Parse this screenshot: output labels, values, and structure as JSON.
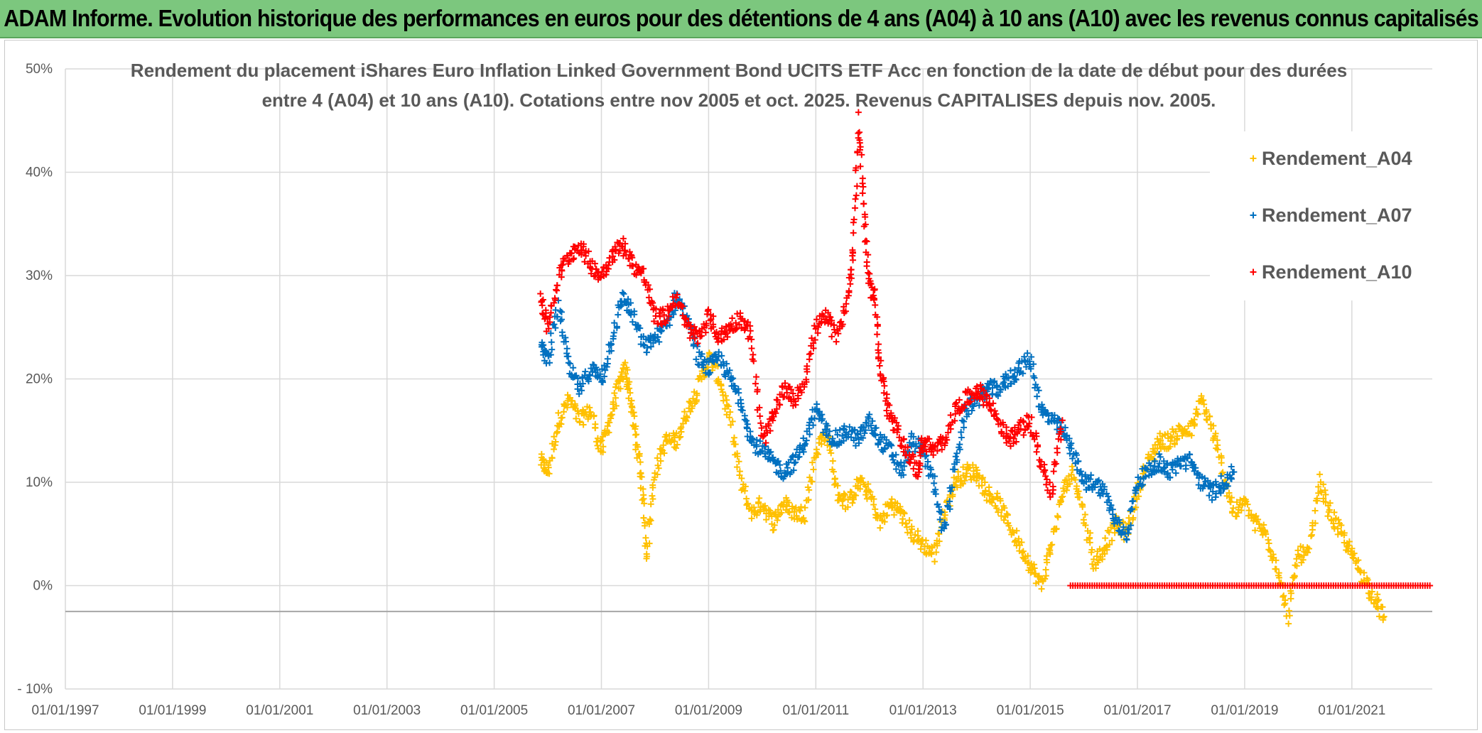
{
  "header": {
    "title": "ADAM Informe. Evolution historique des performances en euros pour des détentions de 4 ans (A04) à 10 ans (A10) avec les revenus connus capitalisés"
  },
  "chart_data": {
    "type": "scatter",
    "title_lines": [
      "Rendement du placement iShares Euro Inflation Linked Government Bond UCITS ETF Acc en fonction de la date de début pour des durées",
      "entre 4 (A04) et 10 ans (A10). Cotations entre nov 2005 et oct. 2025. Revenus CAPITALISES depuis nov. 2005."
    ],
    "xlabel": "",
    "ylabel": "",
    "xlim": [
      1997.0,
      2022.5
    ],
    "ylim": [
      -10,
      50
    ],
    "x_ticks": [
      "01/01/1997",
      "01/01/1999",
      "01/01/2001",
      "01/01/2003",
      "01/01/2005",
      "01/01/2007",
      "01/01/2009",
      "01/01/2011",
      "01/01/2013",
      "01/01/2015",
      "01/01/2017",
      "01/01/2019",
      "01/01/2021"
    ],
    "x_tick_years": [
      1997,
      1999,
      2001,
      2003,
      2005,
      2007,
      2009,
      2011,
      2013,
      2015,
      2017,
      2019,
      2021
    ],
    "y_ticks": [
      "- 10%",
      "0%",
      "10%",
      "20%",
      "30%",
      "40%",
      "50%"
    ],
    "y_tick_values": [
      -10,
      0,
      10,
      20,
      30,
      40,
      50
    ],
    "reference_line_y": -2.5,
    "legend_position": "top-right",
    "marker": "+",
    "series": [
      {
        "name": "Rendement_A04",
        "color": "#ffc000",
        "x": [
          2005.87,
          2006.0,
          2006.2,
          2006.4,
          2006.6,
          2006.8,
          2007.0,
          2007.15,
          2007.3,
          2007.45,
          2007.55,
          2007.65,
          2007.75,
          2007.85,
          2008.0,
          2008.2,
          2008.4,
          2008.6,
          2008.8,
          2009.0,
          2009.2,
          2009.4,
          2009.6,
          2009.8,
          2010.0,
          2010.2,
          2010.4,
          2010.6,
          2010.8,
          2011.0,
          2011.2,
          2011.4,
          2011.6,
          2011.8,
          2012.0,
          2012.2,
          2012.4,
          2012.6,
          2012.8,
          2013.0,
          2013.2,
          2013.4,
          2013.6,
          2013.8,
          2014.0,
          2014.2,
          2014.4,
          2014.6,
          2014.8,
          2015.0,
          2015.2,
          2015.4,
          2015.6,
          2015.8,
          2016.0,
          2016.2,
          2016.4,
          2016.6,
          2016.8,
          2017.0,
          2017.2,
          2017.4,
          2017.6,
          2017.8,
          2018.0,
          2018.2,
          2018.4,
          2018.6,
          2018.8,
          2019.0,
          2019.2,
          2019.4,
          2019.6,
          2019.8,
          2020.0,
          2020.2,
          2020.4,
          2020.6,
          2020.8,
          2021.0,
          2021.2,
          2021.4,
          2021.6
        ],
        "y": [
          12,
          11,
          16,
          18,
          16,
          17,
          13,
          16,
          19,
          21,
          18,
          14,
          10,
          3,
          11,
          14,
          14,
          17,
          19,
          22,
          20,
          16,
          10,
          7,
          8,
          6,
          8,
          7,
          7,
          13,
          15,
          9,
          8,
          10,
          9,
          6,
          8,
          7,
          5,
          4,
          3,
          7,
          10,
          11,
          11,
          9,
          8,
          6,
          4,
          2,
          0,
          4,
          9,
          11,
          7,
          2,
          4,
          6,
          5,
          9,
          12,
          14,
          14,
          15,
          15,
          18,
          15,
          11,
          7,
          8,
          6,
          5,
          2,
          -3,
          3,
          3,
          10,
          7,
          5,
          3,
          1,
          -1,
          -3
        ]
      },
      {
        "name": "Rendement_A07",
        "color": "#0070c0",
        "x": [
          2005.87,
          2006.0,
          2006.2,
          2006.4,
          2006.6,
          2006.8,
          2007.0,
          2007.2,
          2007.4,
          2007.6,
          2007.8,
          2008.0,
          2008.2,
          2008.4,
          2008.6,
          2008.8,
          2009.0,
          2009.2,
          2009.4,
          2009.6,
          2009.8,
          2010.0,
          2010.2,
          2010.4,
          2010.6,
          2010.8,
          2011.0,
          2011.2,
          2011.4,
          2011.6,
          2011.8,
          2012.0,
          2012.2,
          2012.4,
          2012.6,
          2012.8,
          2013.0,
          2013.2,
          2013.4,
          2013.6,
          2013.8,
          2014.0,
          2014.2,
          2014.4,
          2014.6,
          2014.8,
          2015.0,
          2015.2,
          2015.4,
          2015.6,
          2015.8,
          2016.0,
          2016.2,
          2016.4,
          2016.6,
          2016.8,
          2017.0,
          2017.2,
          2017.4,
          2017.6,
          2017.8,
          2018.0,
          2018.2,
          2018.4,
          2018.6,
          2018.8
        ],
        "y": [
          23,
          22,
          27,
          21,
          19,
          21,
          20,
          24,
          28,
          26,
          23,
          24,
          25,
          28,
          26,
          22,
          21,
          22,
          20,
          18,
          14,
          13,
          12,
          11,
          12,
          14,
          17,
          15,
          14,
          15,
          14,
          16,
          14,
          13,
          11,
          14,
          13,
          10,
          5,
          12,
          17,
          18,
          19,
          19,
          20,
          21,
          22,
          17,
          16,
          15,
          13,
          10,
          10,
          9,
          6,
          5,
          10,
          11,
          12,
          11,
          12,
          12,
          10,
          9,
          10,
          11
        ]
      },
      {
        "name": "Rendement_A10",
        "color": "#ff0000",
        "x": [
          2005.87,
          2006.0,
          2006.2,
          2006.4,
          2006.6,
          2006.8,
          2007.0,
          2007.2,
          2007.4,
          2007.6,
          2007.8,
          2008.0,
          2008.2,
          2008.4,
          2008.6,
          2008.8,
          2009.0,
          2009.2,
          2009.4,
          2009.6,
          2009.8,
          2010.0,
          2010.2,
          2010.4,
          2010.6,
          2010.8,
          2011.0,
          2011.2,
          2011.4,
          2011.6,
          2011.7,
          2011.8,
          2011.9,
          2012.0,
          2012.1,
          2012.2,
          2012.35,
          2012.5,
          2012.7,
          2012.9,
          2013.0,
          2013.2,
          2013.4,
          2013.6,
          2013.8,
          2014.0,
          2014.2,
          2014.4,
          2014.6,
          2014.8,
          2015.0,
          2015.2,
          2015.4,
          2015.6
        ],
        "y": [
          28,
          25,
          30,
          32,
          33,
          31,
          30,
          32,
          33,
          31,
          30,
          26,
          26,
          28,
          25,
          24,
          26,
          24,
          25,
          26,
          24,
          14,
          16,
          19,
          18,
          20,
          25,
          26,
          24,
          28,
          33,
          45,
          36,
          29,
          28,
          21,
          17,
          15,
          13,
          11,
          14,
          13,
          14,
          17,
          18,
          19,
          18,
          16,
          14,
          15,
          16,
          12,
          9,
          16
        ],
        "zero_line_from": 2015.75,
        "zero_line_to": 2022.5
      }
    ]
  }
}
